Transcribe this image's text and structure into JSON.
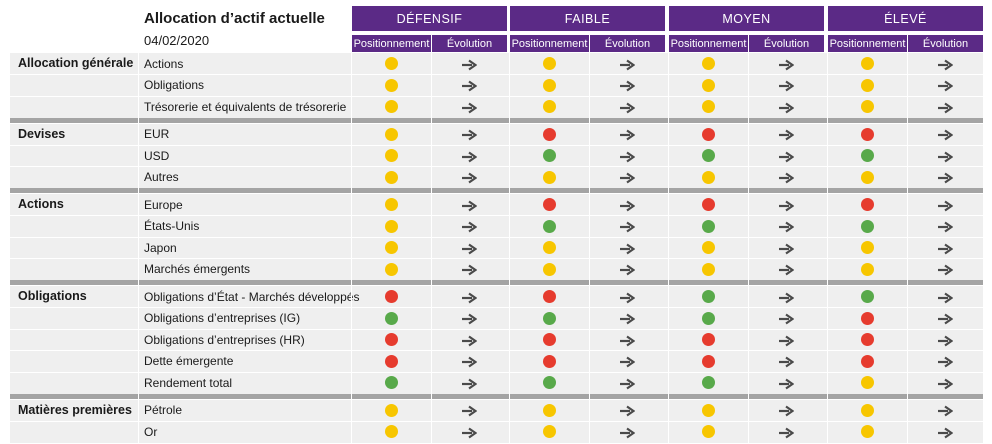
{
  "header": {
    "title": "Allocation d’actif actuelle",
    "date": "04/02/2020",
    "profiles": [
      {
        "label": "DÉFENSIF",
        "positionnement": "Positionnement",
        "evolution": "Évolution"
      },
      {
        "label": "FAIBLE",
        "positionnement": "Positionnement",
        "evolution": "Évolution"
      },
      {
        "label": "MOYEN",
        "positionnement": "Positionnement",
        "evolution": "Évolution"
      },
      {
        "label": "ÉLEVÉ",
        "positionnement": "Positionnement",
        "evolution": "Évolution"
      }
    ]
  },
  "colors": {
    "accent": "#5b2a86",
    "yellow": "#f7c600",
    "red": "#e63b2e",
    "green": "#58a94a",
    "arrow": "#4a4a4a",
    "row_bg": "#efefef",
    "separator": "#a4a4a4"
  },
  "legend_icons": {
    "evolution": "arrow-right-icon"
  },
  "sections": [
    {
      "category": "Allocation générale",
      "rows": [
        {
          "label": "Actions",
          "positions": [
            "yellow",
            "yellow",
            "yellow",
            "yellow"
          ]
        },
        {
          "label": "Obligations",
          "positions": [
            "yellow",
            "yellow",
            "yellow",
            "yellow"
          ]
        },
        {
          "label": "Trésorerie et équivalents de trésorerie",
          "positions": [
            "yellow",
            "yellow",
            "yellow",
            "yellow"
          ]
        }
      ]
    },
    {
      "category": "Devises",
      "rows": [
        {
          "label": "EUR",
          "positions": [
            "yellow",
            "red",
            "red",
            "red"
          ]
        },
        {
          "label": "USD",
          "positions": [
            "yellow",
            "green",
            "green",
            "green"
          ]
        },
        {
          "label": "Autres",
          "positions": [
            "yellow",
            "yellow",
            "yellow",
            "yellow"
          ]
        }
      ]
    },
    {
      "category": "Actions",
      "rows": [
        {
          "label": "Europe",
          "positions": [
            "yellow",
            "red",
            "red",
            "red"
          ]
        },
        {
          "label": "États-Unis",
          "positions": [
            "yellow",
            "green",
            "green",
            "green"
          ]
        },
        {
          "label": "Japon",
          "positions": [
            "yellow",
            "yellow",
            "yellow",
            "yellow"
          ]
        },
        {
          "label": "Marchés émergents",
          "positions": [
            "yellow",
            "yellow",
            "yellow",
            "yellow"
          ]
        }
      ]
    },
    {
      "category": "Obligations",
      "rows": [
        {
          "label": "Obligations d’État - Marchés développés",
          "positions": [
            "red",
            "red",
            "green",
            "green"
          ]
        },
        {
          "label": "Obligations d’entreprises (IG)",
          "positions": [
            "green",
            "green",
            "green",
            "red"
          ]
        },
        {
          "label": "Obligations d’entreprises (HR)",
          "positions": [
            "red",
            "red",
            "red",
            "red"
          ]
        },
        {
          "label": "Dette émergente",
          "positions": [
            "red",
            "red",
            "red",
            "red"
          ]
        },
        {
          "label": "Rendement total",
          "positions": [
            "green",
            "green",
            "green",
            "yellow"
          ]
        }
      ]
    },
    {
      "category": "Matières premières",
      "rows": [
        {
          "label": "Pétrole",
          "positions": [
            "yellow",
            "yellow",
            "yellow",
            "yellow"
          ]
        },
        {
          "label": "Or",
          "positions": [
            "yellow",
            "yellow",
            "yellow",
            "yellow"
          ]
        }
      ]
    }
  ]
}
